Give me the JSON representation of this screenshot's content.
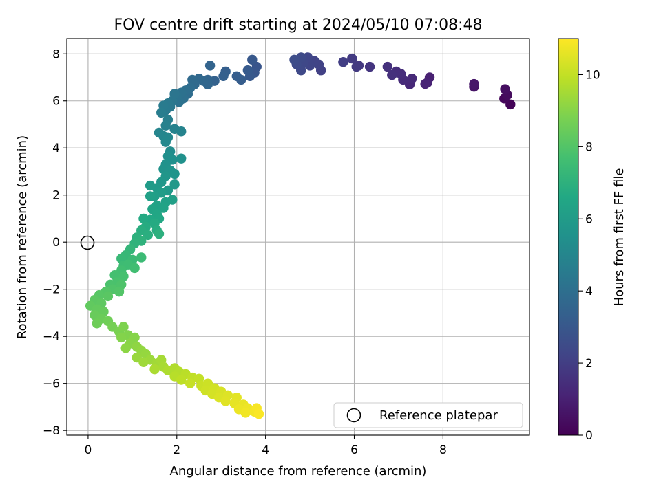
{
  "chart_data": {
    "type": "scatter",
    "title": "FOV centre drift starting at 2024/05/10 07:08:48",
    "xlabel": "Angular distance from reference (arcmin)",
    "ylabel": "Rotation from reference (arcmin)",
    "xlim": [
      -0.48,
      9.95
    ],
    "ylim": [
      -8.2,
      8.65
    ],
    "xticks": [
      0,
      2,
      4,
      6,
      8
    ],
    "yticks": [
      -8,
      -6,
      -4,
      -2,
      0,
      2,
      4,
      6,
      8
    ],
    "grid": true,
    "colormap": "viridis",
    "colorbar": {
      "label": "Hours from first FF file",
      "range": [
        0,
        11
      ],
      "ticks": [
        0,
        2,
        4,
        6,
        8,
        10
      ]
    },
    "legend": {
      "placement": "lower-right",
      "entries": [
        {
          "label": "Reference platepar",
          "marker": "open-circle",
          "color": "#000000"
        }
      ]
    },
    "reference_point": {
      "x": 0,
      "y": 0
    },
    "series": [
      {
        "color_by": "hours",
        "points": [
          {
            "x": 9.52,
            "y": 5.85,
            "c": 0.1
          },
          {
            "x": 9.38,
            "y": 6.1,
            "c": 0.2
          },
          {
            "x": 9.45,
            "y": 6.25,
            "c": 0.3
          },
          {
            "x": 9.4,
            "y": 6.5,
            "c": 0.4
          },
          {
            "x": 8.7,
            "y": 6.6,
            "c": 0.6
          },
          {
            "x": 8.7,
            "y": 6.72,
            "c": 0.7
          },
          {
            "x": 7.7,
            "y": 7.0,
            "c": 1.0
          },
          {
            "x": 7.65,
            "y": 6.78,
            "c": 1.05
          },
          {
            "x": 7.6,
            "y": 6.72,
            "c": 1.1
          },
          {
            "x": 7.25,
            "y": 6.7,
            "c": 1.2
          },
          {
            "x": 7.3,
            "y": 6.95,
            "c": 1.3
          },
          {
            "x": 7.1,
            "y": 6.9,
            "c": 1.35
          },
          {
            "x": 7.05,
            "y": 7.15,
            "c": 1.4
          },
          {
            "x": 6.95,
            "y": 7.25,
            "c": 1.45
          },
          {
            "x": 6.85,
            "y": 7.1,
            "c": 1.5
          },
          {
            "x": 6.75,
            "y": 7.45,
            "c": 1.55
          },
          {
            "x": 6.35,
            "y": 7.45,
            "c": 1.7
          },
          {
            "x": 6.1,
            "y": 7.5,
            "c": 1.8
          },
          {
            "x": 6.05,
            "y": 7.45,
            "c": 1.85
          },
          {
            "x": 5.95,
            "y": 7.8,
            "c": 1.9
          },
          {
            "x": 5.75,
            "y": 7.65,
            "c": 2.0
          },
          {
            "x": 5.25,
            "y": 7.3,
            "c": 2.1
          },
          {
            "x": 5.2,
            "y": 7.55,
            "c": 2.15
          },
          {
            "x": 5.1,
            "y": 7.7,
            "c": 2.2
          },
          {
            "x": 5.0,
            "y": 7.5,
            "c": 2.25
          },
          {
            "x": 4.95,
            "y": 7.85,
            "c": 2.3
          },
          {
            "x": 4.85,
            "y": 7.6,
            "c": 2.35
          },
          {
            "x": 4.8,
            "y": 7.3,
            "c": 2.4
          },
          {
            "x": 4.8,
            "y": 7.85,
            "c": 2.45
          },
          {
            "x": 4.7,
            "y": 7.55,
            "c": 2.5
          },
          {
            "x": 4.65,
            "y": 7.75,
            "c": 2.55
          },
          {
            "x": 3.8,
            "y": 7.45,
            "c": 2.9
          },
          {
            "x": 3.75,
            "y": 7.2,
            "c": 2.95
          },
          {
            "x": 3.7,
            "y": 7.75,
            "c": 3.0
          },
          {
            "x": 3.65,
            "y": 7.05,
            "c": 3.05
          },
          {
            "x": 3.6,
            "y": 7.3,
            "c": 3.1
          },
          {
            "x": 3.45,
            "y": 6.9,
            "c": 3.2
          },
          {
            "x": 3.35,
            "y": 7.05,
            "c": 3.25
          },
          {
            "x": 3.1,
            "y": 7.25,
            "c": 3.3
          },
          {
            "x": 3.05,
            "y": 7.05,
            "c": 3.35
          },
          {
            "x": 2.85,
            "y": 6.85,
            "c": 3.45
          },
          {
            "x": 2.75,
            "y": 7.5,
            "c": 3.5
          },
          {
            "x": 2.7,
            "y": 6.9,
            "c": 3.55
          },
          {
            "x": 2.7,
            "y": 6.7,
            "c": 3.6
          },
          {
            "x": 2.6,
            "y": 6.85,
            "c": 3.65
          },
          {
            "x": 2.5,
            "y": 6.95,
            "c": 3.7
          },
          {
            "x": 2.4,
            "y": 6.7,
            "c": 3.75
          },
          {
            "x": 2.35,
            "y": 6.9,
            "c": 3.8
          },
          {
            "x": 2.3,
            "y": 6.55,
            "c": 3.85
          },
          {
            "x": 2.25,
            "y": 6.3,
            "c": 3.9
          },
          {
            "x": 2.2,
            "y": 6.45,
            "c": 4.0
          },
          {
            "x": 2.15,
            "y": 6.1,
            "c": 4.05
          },
          {
            "x": 2.1,
            "y": 6.35,
            "c": 4.1
          },
          {
            "x": 2.05,
            "y": 5.95,
            "c": 4.15
          },
          {
            "x": 2.0,
            "y": 6.2,
            "c": 4.2
          },
          {
            "x": 1.95,
            "y": 6.3,
            "c": 4.25
          },
          {
            "x": 1.9,
            "y": 6.0,
            "c": 4.3
          },
          {
            "x": 1.85,
            "y": 5.75,
            "c": 4.4
          },
          {
            "x": 1.8,
            "y": 5.9,
            "c": 4.45
          },
          {
            "x": 1.75,
            "y": 5.6,
            "c": 4.5
          },
          {
            "x": 1.7,
            "y": 5.8,
            "c": 4.55
          },
          {
            "x": 1.65,
            "y": 5.5,
            "c": 4.6
          },
          {
            "x": 1.8,
            "y": 5.2,
            "c": 4.7
          },
          {
            "x": 1.75,
            "y": 4.95,
            "c": 4.8
          },
          {
            "x": 1.95,
            "y": 4.8,
            "c": 4.85
          },
          {
            "x": 2.1,
            "y": 4.7,
            "c": 4.9
          },
          {
            "x": 1.6,
            "y": 4.65,
            "c": 4.95
          },
          {
            "x": 1.7,
            "y": 4.5,
            "c": 5.0
          },
          {
            "x": 1.8,
            "y": 4.45,
            "c": 5.05
          },
          {
            "x": 1.75,
            "y": 4.25,
            "c": 5.1
          },
          {
            "x": 1.85,
            "y": 3.85,
            "c": 5.3
          },
          {
            "x": 1.8,
            "y": 3.65,
            "c": 5.4
          },
          {
            "x": 1.9,
            "y": 3.5,
            "c": 5.45
          },
          {
            "x": 2.1,
            "y": 3.55,
            "c": 5.5
          },
          {
            "x": 1.75,
            "y": 3.3,
            "c": 5.55
          },
          {
            "x": 1.7,
            "y": 3.1,
            "c": 5.6
          },
          {
            "x": 1.85,
            "y": 3.05,
            "c": 5.65
          },
          {
            "x": 1.95,
            "y": 2.9,
            "c": 5.7
          },
          {
            "x": 1.75,
            "y": 2.8,
            "c": 5.75
          },
          {
            "x": 1.65,
            "y": 2.55,
            "c": 5.8
          },
          {
            "x": 1.95,
            "y": 2.45,
            "c": 5.85
          },
          {
            "x": 1.8,
            "y": 2.2,
            "c": 5.9
          },
          {
            "x": 1.55,
            "y": 2.3,
            "c": 5.95
          },
          {
            "x": 1.4,
            "y": 2.4,
            "c": 6.0
          },
          {
            "x": 1.65,
            "y": 2.1,
            "c": 6.05
          },
          {
            "x": 1.5,
            "y": 1.95,
            "c": 6.1
          },
          {
            "x": 1.9,
            "y": 1.8,
            "c": 6.15
          },
          {
            "x": 1.4,
            "y": 1.95,
            "c": 6.2
          },
          {
            "x": 1.75,
            "y": 1.7,
            "c": 6.25
          },
          {
            "x": 1.55,
            "y": 1.55,
            "c": 6.3
          },
          {
            "x": 1.7,
            "y": 1.45,
            "c": 6.35
          },
          {
            "x": 1.45,
            "y": 1.4,
            "c": 6.4
          },
          {
            "x": 1.55,
            "y": 1.2,
            "c": 6.5
          },
          {
            "x": 1.6,
            "y": 1.0,
            "c": 6.55
          },
          {
            "x": 1.4,
            "y": 0.95,
            "c": 6.6
          },
          {
            "x": 1.25,
            "y": 1.0,
            "c": 6.65
          },
          {
            "x": 1.5,
            "y": 0.8,
            "c": 6.7
          },
          {
            "x": 1.3,
            "y": 0.65,
            "c": 6.75
          },
          {
            "x": 1.55,
            "y": 0.5,
            "c": 6.8
          },
          {
            "x": 1.2,
            "y": 0.5,
            "c": 6.85
          },
          {
            "x": 1.35,
            "y": 0.3,
            "c": 6.9
          },
          {
            "x": 1.6,
            "y": 0.35,
            "c": 6.95
          },
          {
            "x": 1.1,
            "y": 0.2,
            "c": 7.0
          },
          {
            "x": 1.2,
            "y": 0.05,
            "c": 7.05
          },
          {
            "x": 1.05,
            "y": -0.05,
            "c": 7.1
          },
          {
            "x": 0.95,
            "y": -0.3,
            "c": 7.2
          },
          {
            "x": 0.85,
            "y": -0.55,
            "c": 7.3
          },
          {
            "x": 0.75,
            "y": -0.7,
            "c": 7.35
          },
          {
            "x": 1.0,
            "y": -0.75,
            "c": 7.4
          },
          {
            "x": 1.2,
            "y": -0.65,
            "c": 7.45
          },
          {
            "x": 0.8,
            "y": -1.0,
            "c": 7.5
          },
          {
            "x": 0.9,
            "y": -0.95,
            "c": 7.55
          },
          {
            "x": 1.05,
            "y": -1.1,
            "c": 7.6
          },
          {
            "x": 0.75,
            "y": -1.2,
            "c": 7.65
          },
          {
            "x": 0.6,
            "y": -1.4,
            "c": 7.7
          },
          {
            "x": 0.8,
            "y": -1.45,
            "c": 7.75
          },
          {
            "x": 0.65,
            "y": -1.7,
            "c": 7.8
          },
          {
            "x": 0.5,
            "y": -1.8,
            "c": 7.85
          },
          {
            "x": 0.75,
            "y": -1.8,
            "c": 7.9
          },
          {
            "x": 0.55,
            "y": -2.0,
            "c": 7.95
          },
          {
            "x": 0.7,
            "y": -2.1,
            "c": 8.0
          },
          {
            "x": 0.4,
            "y": -2.1,
            "c": 8.05
          },
          {
            "x": 0.25,
            "y": -2.25,
            "c": 8.1
          },
          {
            "x": 0.45,
            "y": -2.3,
            "c": 8.15
          },
          {
            "x": 0.15,
            "y": -2.45,
            "c": 8.2
          },
          {
            "x": 0.3,
            "y": -2.6,
            "c": 8.25
          },
          {
            "x": 0.05,
            "y": -2.7,
            "c": 8.3
          },
          {
            "x": 0.2,
            "y": -2.85,
            "c": 8.35
          },
          {
            "x": 0.35,
            "y": -2.95,
            "c": 8.4
          },
          {
            "x": 0.15,
            "y": -3.1,
            "c": 8.45
          },
          {
            "x": 0.3,
            "y": -3.25,
            "c": 8.5
          },
          {
            "x": 0.2,
            "y": -3.45,
            "c": 8.55
          },
          {
            "x": 0.45,
            "y": -3.35,
            "c": 8.6
          },
          {
            "x": 0.55,
            "y": -3.6,
            "c": 8.7
          },
          {
            "x": 0.7,
            "y": -3.8,
            "c": 8.8
          },
          {
            "x": 0.8,
            "y": -3.6,
            "c": 8.85
          },
          {
            "x": 0.9,
            "y": -3.95,
            "c": 8.9
          },
          {
            "x": 0.75,
            "y": -4.05,
            "c": 8.95
          },
          {
            "x": 1.05,
            "y": -4.05,
            "c": 9.0
          },
          {
            "x": 0.95,
            "y": -4.3,
            "c": 9.05
          },
          {
            "x": 0.85,
            "y": -4.5,
            "c": 9.1
          },
          {
            "x": 1.1,
            "y": -4.45,
            "c": 9.15
          },
          {
            "x": 1.2,
            "y": -4.6,
            "c": 9.2
          },
          {
            "x": 1.3,
            "y": -4.75,
            "c": 9.25
          },
          {
            "x": 1.1,
            "y": -4.9,
            "c": 9.3
          },
          {
            "x": 1.4,
            "y": -5.0,
            "c": 9.35
          },
          {
            "x": 1.25,
            "y": -5.1,
            "c": 9.4
          },
          {
            "x": 1.55,
            "y": -5.15,
            "c": 9.45
          },
          {
            "x": 1.65,
            "y": -5.0,
            "c": 9.5
          },
          {
            "x": 1.7,
            "y": -5.3,
            "c": 9.55
          },
          {
            "x": 1.5,
            "y": -5.4,
            "c": 9.6
          },
          {
            "x": 1.8,
            "y": -5.45,
            "c": 9.65
          },
          {
            "x": 1.95,
            "y": -5.35,
            "c": 9.7
          },
          {
            "x": 2.05,
            "y": -5.5,
            "c": 9.75
          },
          {
            "x": 1.95,
            "y": -5.7,
            "c": 9.8
          },
          {
            "x": 2.2,
            "y": -5.6,
            "c": 9.85
          },
          {
            "x": 2.1,
            "y": -5.85,
            "c": 9.9
          },
          {
            "x": 2.35,
            "y": -5.75,
            "c": 9.95
          },
          {
            "x": 2.5,
            "y": -5.8,
            "c": 10.0
          },
          {
            "x": 2.3,
            "y": -6.0,
            "c": 10.05
          },
          {
            "x": 2.55,
            "y": -6.1,
            "c": 10.1
          },
          {
            "x": 2.7,
            "y": -6.0,
            "c": 10.15
          },
          {
            "x": 2.65,
            "y": -6.3,
            "c": 10.2
          },
          {
            "x": 2.85,
            "y": -6.2,
            "c": 10.25
          },
          {
            "x": 2.8,
            "y": -6.45,
            "c": 10.3
          },
          {
            "x": 3.0,
            "y": -6.35,
            "c": 10.35
          },
          {
            "x": 2.95,
            "y": -6.6,
            "c": 10.4
          },
          {
            "x": 3.15,
            "y": -6.5,
            "c": 10.45
          },
          {
            "x": 3.1,
            "y": -6.75,
            "c": 10.5
          },
          {
            "x": 3.35,
            "y": -6.6,
            "c": 10.55
          },
          {
            "x": 3.3,
            "y": -6.85,
            "c": 10.6
          },
          {
            "x": 3.5,
            "y": -6.9,
            "c": 10.65
          },
          {
            "x": 3.4,
            "y": -7.1,
            "c": 10.7
          },
          {
            "x": 3.6,
            "y": -7.05,
            "c": 10.75
          },
          {
            "x": 3.55,
            "y": -7.25,
            "c": 10.8
          },
          {
            "x": 3.75,
            "y": -7.2,
            "c": 10.85
          },
          {
            "x": 3.8,
            "y": -7.05,
            "c": 10.9
          },
          {
            "x": 3.85,
            "y": -7.3,
            "c": 10.95
          }
        ]
      }
    ]
  }
}
